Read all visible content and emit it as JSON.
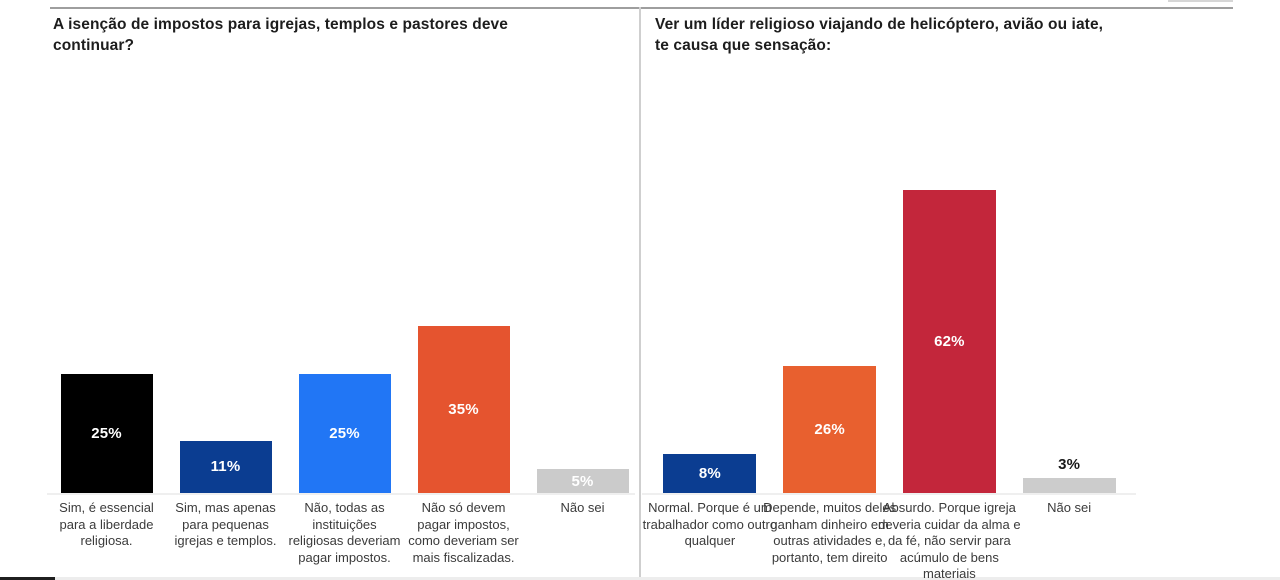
{
  "page": {
    "background": "#ffffff",
    "top_rule_color": "#9e9e9e",
    "top_right_artifact_color": "#d6d6d6",
    "divider_color": "#cfcfcf",
    "baseline_color": "#efefef",
    "bottom_strip_color": "#ededed",
    "bottom_corner_color": "#1f1f1f",
    "title_color": "#1d1d1d",
    "category_text_color": "#3b3b3b"
  },
  "chart_data": [
    {
      "type": "bar",
      "title": "A isenção de impostos para igrejas, templos e pastores deve\ncontinuar?",
      "categories": [
        "Sim, é essencial para a liberdade religiosa.",
        "Sim, mas apenas para pequenas igrejas e templos.",
        "Não, todas as instituições religiosas deveriam pagar impostos.",
        "Não só devem pagar impostos, como deveriam ser mais fiscalizadas.",
        "Não sei"
      ],
      "category_lines": [
        "Sim, é essencial\npara a liberdade\nreligiosa.",
        "Sim, mas apenas\npara pequenas\nigrejas e templos.",
        "Não, todas as\ninstituições\nreligiosas deveriam\npagar impostos.",
        "Não só devem\npagar impostos,\ncomo deveriam ser\nmais fiscalizadas.",
        "Não sei"
      ],
      "values": [
        25,
        11,
        25,
        35,
        5
      ],
      "value_labels": [
        "25%",
        "11%",
        "25%",
        "35%",
        "5%"
      ],
      "colors": [
        "#000000",
        "#0b3d91",
        "#2176f5",
        "#e5542f",
        "#cbcbcb"
      ],
      "value_label_positions": [
        "inside",
        "inside",
        "inside",
        "inside",
        "inside"
      ],
      "value_label_colors": [
        "#ffffff",
        "#ffffff",
        "#ffffff",
        "#ffffff",
        "#ffffff"
      ],
      "xlabel": "",
      "ylabel": "",
      "layout": {
        "axes": "hidden",
        "grid": false,
        "legend": "none",
        "value_labels": "on-bar"
      }
    },
    {
      "type": "bar",
      "title": "Ver um líder religioso viajando de helicóptero, avião ou iate,\nte causa que sensação:",
      "categories": [
        "Normal. Porque é um trabalhador como outro qualquer",
        "Depende, muitos deles ganham dinheiro em outras atividades e, portanto, tem direito",
        "Absurdo. Porque igreja deveria cuidar da alma e da fé, não servir para acúmulo de bens materiais",
        "Não sei"
      ],
      "category_lines": [
        "Normal. Porque é um\ntrabalhador como outro\nqualquer",
        "Depende, muitos deles\nganham dinheiro em\noutras atividades e,\nportanto, tem direito",
        "Absurdo. Porque igreja\ndeveria cuidar da alma e\nda fé, não servir para\nacúmulo de bens\nmateriais",
        "Não sei"
      ],
      "values": [
        8,
        26,
        62,
        3
      ],
      "value_labels": [
        "8%",
        "26%",
        "62%",
        "3%"
      ],
      "colors": [
        "#0b3d91",
        "#e8602f",
        "#c3263b",
        "#cccccc"
      ],
      "value_label_positions": [
        "inside",
        "inside",
        "inside",
        "above"
      ],
      "value_label_colors": [
        "#ffffff",
        "#ffffff",
        "#ffffff",
        "#1a1a1a"
      ],
      "xlabel": "",
      "ylabel": "",
      "layout": {
        "axes": "hidden",
        "grid": false,
        "legend": "none",
        "value_labels": "on-bar"
      }
    }
  ]
}
